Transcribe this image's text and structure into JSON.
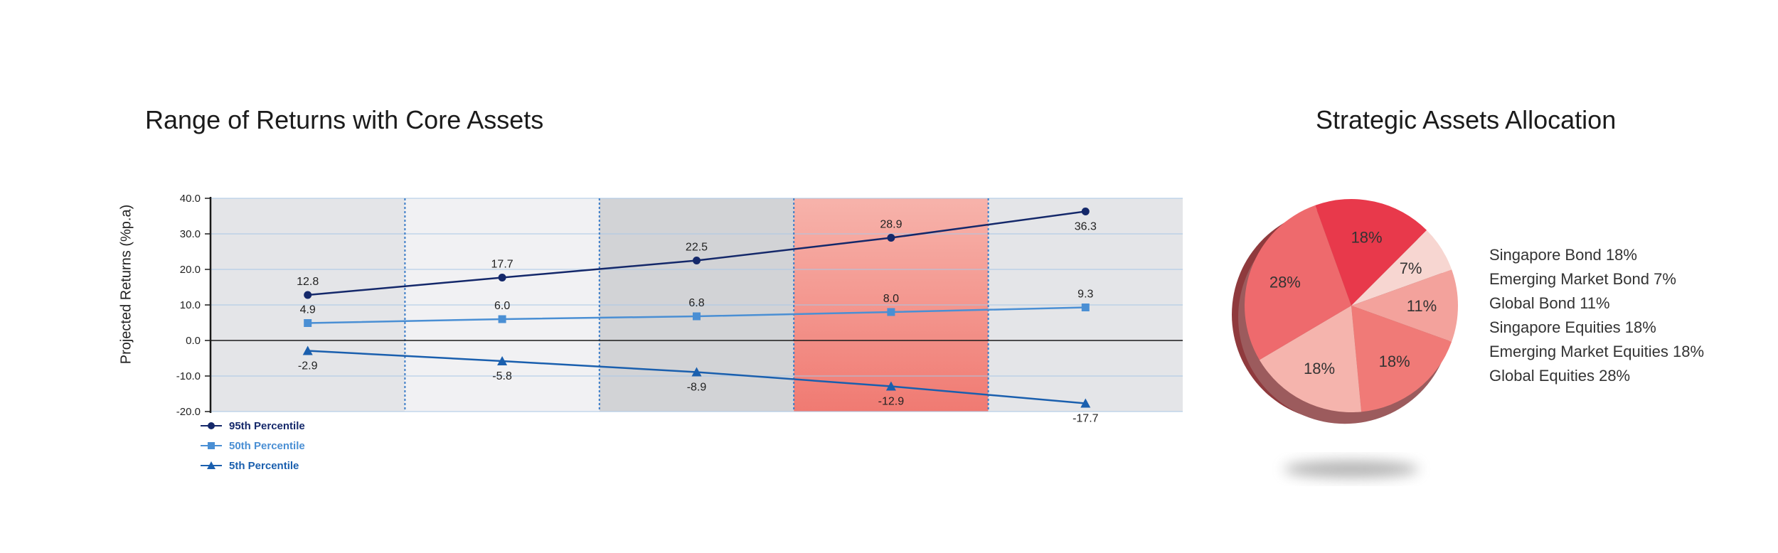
{
  "colors": {
    "band_light_gray": "#e4e5e8",
    "band_lightest": "#f1f1f3",
    "band_gray": "#d2d3d6",
    "band_red_top": "#f7b3ab",
    "band_red_bottom": "#f07a72",
    "series_95": "#14286a",
    "series_50": "#4a8fd4",
    "series_5": "#1a5fae",
    "pie_colors": [
      "#e8394b",
      "#f7d6d1",
      "#f3a29c",
      "#f07a77",
      "#f5b4ad",
      "#ee6a6d"
    ]
  },
  "chart_data": [
    {
      "type": "line",
      "title": "Range of Returns with Core Assets",
      "xlabel": "",
      "ylabel": "Projected Returns (%p.a)",
      "ylim": [
        -20,
        40
      ],
      "yticks": [
        "40.0",
        "30.0",
        "20.0",
        "10.0",
        "0.0",
        "-10.0",
        "-20.0"
      ],
      "grid": true,
      "legend_position": "bottom-left",
      "x": [
        1,
        2,
        3,
        4,
        5
      ],
      "series": [
        {
          "name": "95th Percentile",
          "marker": "circle",
          "values": [
            12.8,
            17.7,
            22.5,
            28.9,
            36.3
          ],
          "labels": [
            "12.8",
            "17.7",
            "22.5",
            "28.9",
            "36.3"
          ]
        },
        {
          "name": "50th Percentile",
          "marker": "square",
          "values": [
            4.9,
            6.0,
            6.8,
            8.0,
            9.3
          ],
          "labels": [
            "4.9",
            "6.0",
            "6.8",
            "8.0",
            "9.3"
          ]
        },
        {
          "name": "5th Percentile",
          "marker": "triangle",
          "values": [
            -2.9,
            -5.8,
            -8.9,
            -12.9,
            -17.7
          ],
          "labels": [
            "-2.9",
            "-5.8",
            "-8.9",
            "-12.9",
            "-17.7"
          ]
        }
      ]
    },
    {
      "type": "pie",
      "title": "Strategic Assets Allocation",
      "legend_position": "right",
      "slices": [
        {
          "name": "Singapore Bond",
          "value": 18,
          "label": "18%",
          "legend": "Singapore Bond 18%"
        },
        {
          "name": "Emerging Market Bond",
          "value": 7,
          "label": "7%",
          "legend": "Emerging Market Bond 7%"
        },
        {
          "name": "Global Bond",
          "value": 11,
          "label": "11%",
          "legend": "Global Bond 11%"
        },
        {
          "name": "Singapore Equities",
          "value": 18,
          "label": "18%",
          "legend": "Singapore Equities 18%"
        },
        {
          "name": "Emerging Market Equities",
          "value": 18,
          "label": "18%",
          "legend": "Emerging Market Equities 18%"
        },
        {
          "name": "Global Equities",
          "value": 28,
          "label": "28%",
          "legend": "Global Equities 28%"
        }
      ]
    }
  ]
}
